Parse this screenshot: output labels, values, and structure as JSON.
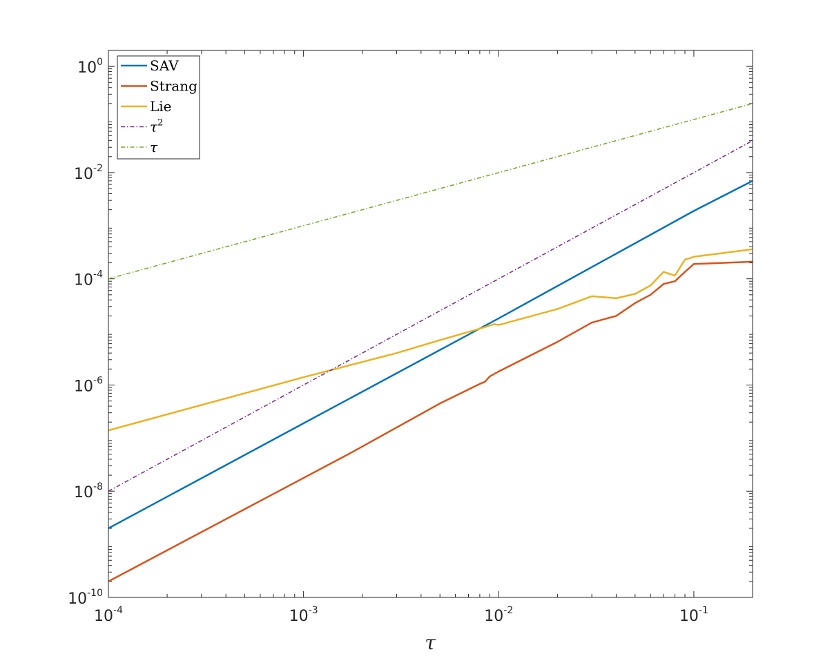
{
  "chart_data": {
    "type": "line",
    "xlabel": "τ",
    "ylabel": "",
    "xscale": "log",
    "yscale": "log",
    "xlim": [
      0.0001,
      0.2
    ],
    "ylim": [
      1e-10,
      2
    ],
    "grid": false,
    "legend_position": "top-left",
    "x_ticks": [
      {
        "value": 0.0001,
        "base": "10",
        "exp": "-4"
      },
      {
        "value": 0.001,
        "base": "10",
        "exp": "-3"
      },
      {
        "value": 0.01,
        "base": "10",
        "exp": "-2"
      },
      {
        "value": 0.1,
        "base": "10",
        "exp": "-1"
      }
    ],
    "y_ticks": [
      {
        "value": 1e-10,
        "base": "10",
        "exp": "-10"
      },
      {
        "value": 1e-08,
        "base": "10",
        "exp": "-8"
      },
      {
        "value": 1e-06,
        "base": "10",
        "exp": "-6"
      },
      {
        "value": 0.0001,
        "base": "10",
        "exp": "-4"
      },
      {
        "value": 0.01,
        "base": "10",
        "exp": "-2"
      },
      {
        "value": 1,
        "base": "10",
        "exp": "0"
      }
    ],
    "series": [
      {
        "name": "SAV",
        "legend_base": "SAV",
        "legend_sup": "",
        "color": "#0072BD",
        "style": "solid",
        "x": [
          0.0001,
          0.001,
          0.01,
          0.1,
          0.2
        ],
        "y": [
          2e-09,
          1.9e-07,
          1.8e-05,
          0.0019,
          0.007
        ]
      },
      {
        "name": "Strang",
        "legend_base": "Strang",
        "legend_sup": "",
        "color": "#D95319",
        "style": "solid",
        "x": [
          0.0001,
          0.0017,
          0.0018,
          0.005,
          0.008,
          0.0085,
          0.009,
          0.01,
          0.02,
          0.03,
          0.04,
          0.05,
          0.06,
          0.07,
          0.08,
          0.09,
          0.1,
          0.2
        ],
        "y": [
          2e-10,
          5e-08,
          5.6e-08,
          4.5e-07,
          1.05e-06,
          1.15e-06,
          1.45e-06,
          1.8e-06,
          6.5e-06,
          1.5e-05,
          2e-05,
          3.5e-05,
          5e-05,
          8e-05,
          9e-05,
          0.000135,
          0.00019,
          0.00021
        ]
      },
      {
        "name": "Lie",
        "legend_base": "Lie",
        "legend_sup": "",
        "color": "#EDB120",
        "style": "solid",
        "x": [
          0.0001,
          0.001,
          0.003,
          0.005,
          0.008,
          0.0095,
          0.01,
          0.02,
          0.03,
          0.04,
          0.05,
          0.06,
          0.07,
          0.08,
          0.09,
          0.1,
          0.2
        ],
        "y": [
          1.4e-07,
          1.4e-06,
          4e-06,
          7e-06,
          1.15e-05,
          1.4e-05,
          1.35e-05,
          2.7e-05,
          4.7e-05,
          4.3e-05,
          5.2e-05,
          7.5e-05,
          0.000135,
          0.000115,
          0.00023,
          0.00026,
          0.00036
        ]
      },
      {
        "name": "τ^2",
        "legend_base": "τ",
        "legend_sup": "2",
        "color": "#7E2F8E",
        "style": "dashdot",
        "x": [
          0.0001,
          0.2
        ],
        "y": [
          1e-08,
          0.04
        ]
      },
      {
        "name": "τ",
        "legend_base": "τ",
        "legend_sup": "",
        "color": "#77AC30",
        "style": "dashdot",
        "x": [
          0.0001,
          0.2
        ],
        "y": [
          0.0001,
          0.2
        ]
      }
    ]
  }
}
